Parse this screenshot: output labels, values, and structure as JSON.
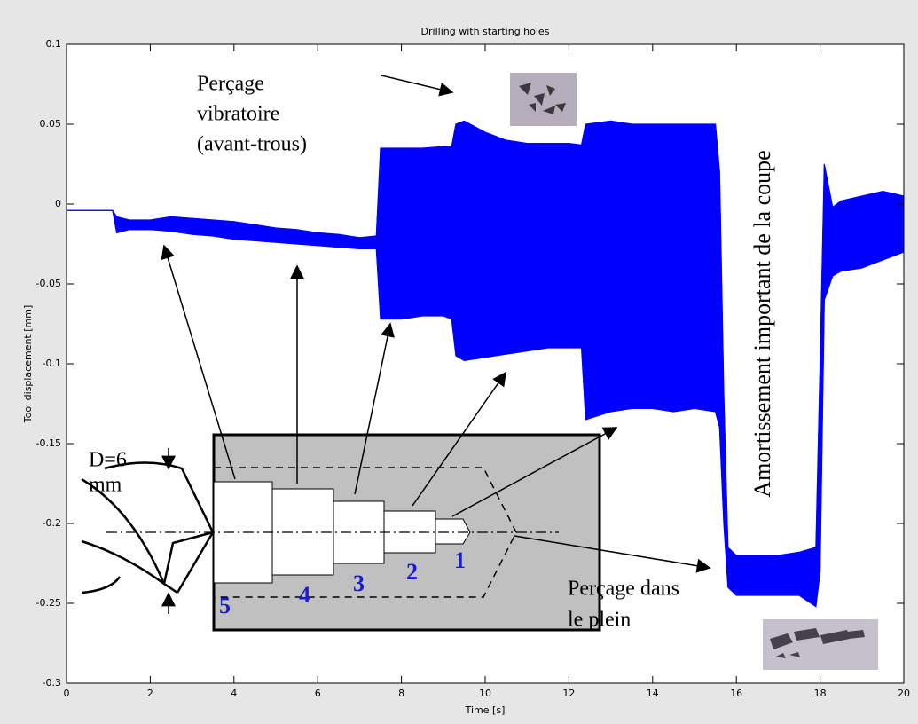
{
  "chart_data": {
    "type": "area",
    "title": "Drilling with starting holes",
    "x_label": "Time [s]",
    "y_label": "Tool displacement [mm]",
    "xlim": [
      0,
      20
    ],
    "xticks": [
      0,
      2,
      4,
      6,
      8,
      10,
      12,
      14,
      16,
      18,
      20
    ],
    "ylim": [
      -0.3,
      0.1
    ],
    "yticks": [
      -0.3,
      -0.25,
      -0.2,
      -0.15,
      -0.1,
      -0.05,
      0,
      0.05,
      0.1
    ],
    "x": [
      0,
      0.5,
      1,
      1.1,
      1.2,
      1.5,
      2,
      2.5,
      3,
      3.5,
      4,
      4.5,
      5,
      5.5,
      6,
      6.5,
      7,
      7.4,
      7.5,
      8,
      8.5,
      9,
      9.2,
      9.3,
      9.5,
      10,
      10.5,
      11,
      11.5,
      12,
      12.3,
      12.4,
      13,
      13.5,
      14,
      14.5,
      15,
      15.5,
      15.6,
      15.7,
      15.8,
      16,
      16.5,
      17,
      17.5,
      17.9,
      18,
      18.1,
      18.3,
      18.5,
      19,
      19.5,
      20
    ],
    "series": [
      {
        "color": "#0000ff",
        "values": [
          -0.004,
          -0.004,
          -0.004,
          -0.004,
          -0.008,
          -0.01,
          -0.01,
          -0.008,
          -0.009,
          -0.01,
          -0.011,
          -0.013,
          -0.015,
          -0.016,
          -0.018,
          -0.019,
          -0.021,
          -0.02,
          0.035,
          0.035,
          0.035,
          0.036,
          0.036,
          0.05,
          0.052,
          0.045,
          0.04,
          0.038,
          0.038,
          0.038,
          0.037,
          0.05,
          0.052,
          0.05,
          0.05,
          0.05,
          0.05,
          0.05,
          0.02,
          -0.12,
          -0.215,
          -0.22,
          -0.22,
          -0.22,
          -0.218,
          -0.215,
          -0.1,
          0.025,
          -0.002,
          0.002,
          0.005,
          0.008,
          0.005
        ]
      },
      {
        "color": "#0000ff",
        "values": [
          -0.004,
          -0.004,
          -0.004,
          -0.004,
          -0.018,
          -0.016,
          -0.016,
          -0.017,
          -0.019,
          -0.02,
          -0.022,
          -0.023,
          -0.024,
          -0.025,
          -0.026,
          -0.027,
          -0.028,
          -0.028,
          -0.072,
          -0.072,
          -0.07,
          -0.07,
          -0.072,
          -0.095,
          -0.098,
          -0.096,
          -0.094,
          -0.092,
          -0.09,
          -0.09,
          -0.09,
          -0.135,
          -0.13,
          -0.128,
          -0.128,
          -0.13,
          -0.128,
          -0.13,
          -0.14,
          -0.2,
          -0.24,
          -0.245,
          -0.245,
          -0.245,
          -0.245,
          -0.252,
          -0.23,
          -0.06,
          -0.045,
          -0.042,
          -0.04,
          -0.035,
          -0.03
        ]
      }
    ],
    "annotations": {
      "vibratory": [
        "Perçage",
        "vibratoire",
        "(avant-trous)"
      ],
      "damping": "Amortissement important de la coupe",
      "full_drilling": [
        "Perçage dans",
        "le plein"
      ],
      "diameter": [
        "D=6",
        "mm"
      ],
      "steps": [
        "1",
        "2",
        "3",
        "4",
        "5"
      ]
    }
  }
}
